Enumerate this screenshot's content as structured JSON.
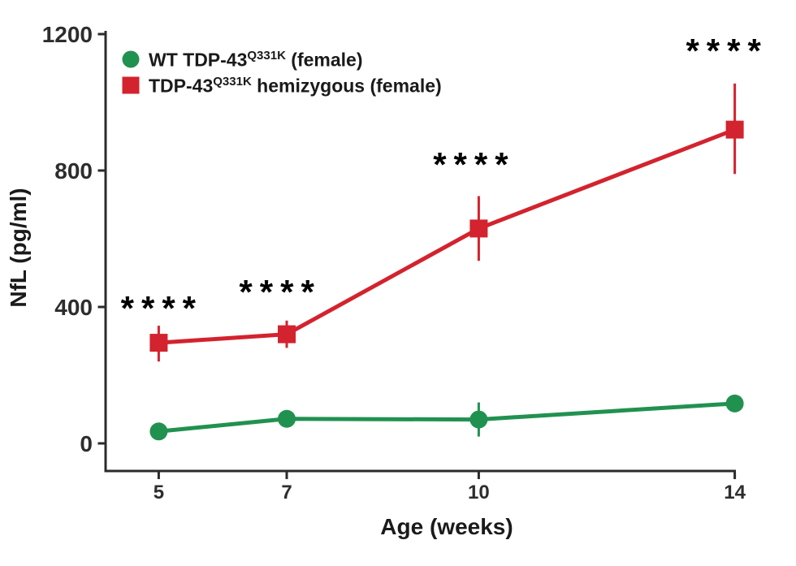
{
  "figure": {
    "background": "#ffffff",
    "axis_color": "#2b2b2b",
    "tick_label_color": "#2d2d2d",
    "text_color": "#1a1a1a",
    "annotation_color": "#000000"
  },
  "chart_data": {
    "type": "line",
    "title": "",
    "xlabel": "Age (weeks)",
    "ylabel": "NfL (pg/ml)",
    "x": [
      5,
      7,
      10,
      14
    ],
    "x_tick_labels": [
      "5",
      "7",
      "10",
      "14"
    ],
    "yticks": [
      0,
      400,
      800,
      1200
    ],
    "ytick_labels": [
      "0",
      "400",
      "800",
      "1200"
    ],
    "ylim": [
      0,
      1200
    ],
    "grid": false,
    "legend_position": "top-left-inside",
    "series": [
      {
        "name": "WT TDP-43Q331K (female)",
        "label_prefix": "WT TDP-43",
        "label_sup": "Q331K",
        "label_suffix": " (female)",
        "color": "#219150",
        "marker": "circle",
        "values": [
          35,
          72,
          70,
          117
        ],
        "err_minus": [
          0,
          0,
          50,
          0
        ],
        "err_plus": [
          0,
          0,
          50,
          0
        ]
      },
      {
        "name": "TDP-43Q331K hemizygous (female)",
        "label_prefix": "TDP-43",
        "label_sup": "Q331K",
        "label_suffix": " hemizygous (female)",
        "color": "#d3232e",
        "marker": "square",
        "values": [
          295,
          320,
          630,
          920
        ],
        "err_minus": [
          55,
          40,
          95,
          130
        ],
        "err_plus": [
          50,
          40,
          95,
          135
        ]
      }
    ],
    "annotations": [
      {
        "label": "****",
        "x": 5.05,
        "y": 402
      },
      {
        "label": "****",
        "x": 6.9,
        "y": 450
      },
      {
        "label": "****",
        "x": 9.93,
        "y": 824
      },
      {
        "label": "****",
        "x": 13.88,
        "y": 1157
      }
    ]
  }
}
